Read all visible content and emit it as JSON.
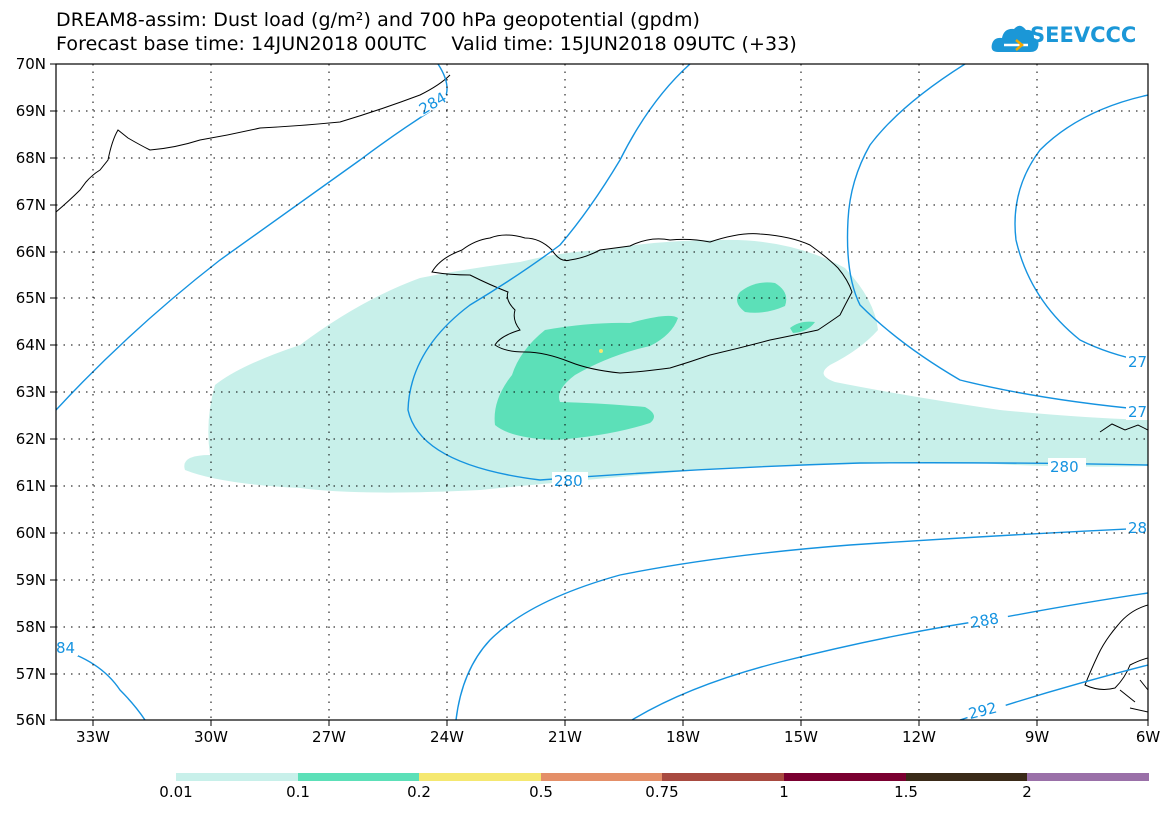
{
  "header": {
    "title_line1": "DREAM8-assim: Dust load (g/m²) and 700 hPa geopotential (gpdm)",
    "title_line2": "Forecast base time: 14JUN2018 00UTC    Valid time: 15JUN2018 09UTC (+33)"
  },
  "logo": {
    "text": "SEEVCCC",
    "color": "#1b97d7"
  },
  "map": {
    "lon_labels": [
      "33W",
      "30W",
      "27W",
      "24W",
      "21W",
      "18W",
      "15W",
      "12W",
      "9W",
      "6W"
    ],
    "lat_labels": [
      "70N",
      "69N",
      "68N",
      "67N",
      "66N",
      "65N",
      "64N",
      "63N",
      "62N",
      "61N",
      "60N",
      "59N",
      "58N",
      "57N",
      "56N"
    ],
    "contour_labels": [
      "284",
      "280",
      "280",
      "27",
      "27",
      "28",
      "288",
      "292",
      "84"
    ],
    "contour_color": "#1593e0",
    "dust_fill_colors": {
      "low": "#c8f0ea",
      "mid": "#5ce0b8",
      "high": "#f5e870"
    }
  },
  "colorbar": {
    "labels": [
      "0.01",
      "0.1",
      "0.2",
      "0.5",
      "0.75",
      "1",
      "1.5",
      "2"
    ],
    "colors": [
      "#c8f0ea",
      "#5ce0b8",
      "#f5e870",
      "#e48f68",
      "#a84a40",
      "#7a0030",
      "#3a2a18",
      "#9a70a8"
    ]
  }
}
